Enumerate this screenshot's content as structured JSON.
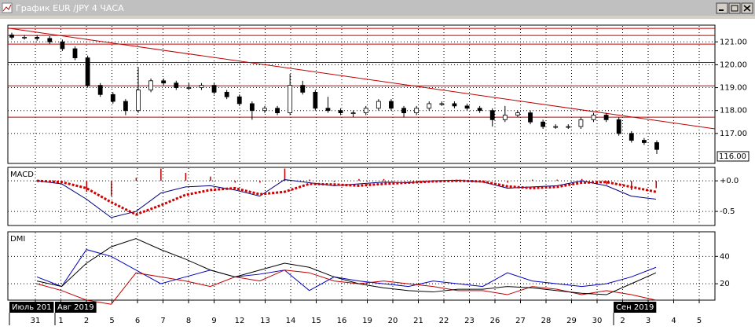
{
  "window": {
    "title": "График EUR /JPY  4 ЧАСА"
  },
  "chart_data": [
    {
      "type": "candlestick",
      "ylim": [
        115.69,
        121.73
      ],
      "yticks": [
        {
          "value": 121,
          "label": "121.00"
        },
        {
          "value": 120,
          "label": "120.00"
        },
        {
          "value": 119,
          "label": "119.00"
        },
        {
          "value": 118,
          "label": "118.00"
        },
        {
          "value": 117,
          "label": "117.00"
        }
      ],
      "last_price": {
        "value": 116,
        "label": "116.00"
      },
      "levels": [
        121.59,
        121.28,
        120.9,
        120.1,
        119.08,
        117.71
      ],
      "level_color": "#c00000",
      "trendline": [
        121.6,
        117.2
      ],
      "open": [
        121.3,
        121.2,
        121.2,
        121.15,
        121.0,
        120.7,
        120.3,
        119.1,
        118.7,
        118.4,
        118.0,
        118.9,
        119.3,
        119.2,
        119.0,
        119.0,
        119.1,
        118.8,
        118.6,
        118.3,
        118.0,
        118.1,
        117.9,
        119.1,
        118.8,
        118.1,
        118.0,
        117.9,
        117.9,
        118.1,
        118.4,
        118.1,
        117.9,
        118.1,
        118.3,
        118.3,
        118.2,
        118.1,
        118.0,
        117.6,
        117.8,
        117.9,
        117.5,
        117.3,
        117.3,
        117.3,
        117.6,
        117.8,
        117.6,
        117.0,
        116.7,
        116.6
      ],
      "high": [
        121.4,
        121.3,
        121.3,
        121.25,
        121.1,
        120.8,
        120.4,
        119.2,
        118.8,
        118.5,
        119.9,
        119.4,
        119.4,
        119.3,
        119.2,
        119.2,
        119.2,
        118.9,
        118.7,
        118.4,
        118.2,
        118.2,
        119.6,
        119.3,
        118.9,
        118.6,
        118.1,
        118.0,
        118.2,
        118.5,
        118.5,
        118.2,
        118.2,
        118.4,
        118.4,
        118.4,
        118.3,
        118.2,
        118.1,
        118.2,
        118.0,
        118.0,
        117.6,
        117.4,
        117.4,
        117.7,
        117.9,
        117.9,
        117.7,
        117.1,
        116.8,
        116.7
      ],
      "low": [
        121.1,
        121.1,
        121.05,
        120.9,
        120.6,
        120.2,
        119.0,
        118.6,
        118.3,
        117.8,
        117.9,
        118.8,
        119.1,
        118.9,
        118.9,
        118.9,
        118.7,
        118.5,
        118.2,
        117.6,
        117.9,
        117.8,
        117.8,
        118.7,
        118.0,
        117.9,
        117.8,
        117.7,
        117.8,
        118.0,
        118.0,
        117.7,
        117.8,
        118.0,
        118.2,
        118.1,
        118.0,
        117.9,
        117.3,
        117.5,
        117.7,
        117.4,
        117.2,
        117.2,
        117.2,
        117.2,
        117.5,
        117.5,
        116.9,
        116.6,
        116.5,
        116.1
      ],
      "close": [
        121.2,
        121.2,
        121.15,
        121.0,
        120.7,
        120.3,
        119.1,
        118.7,
        118.4,
        118.0,
        118.9,
        119.3,
        119.2,
        119.0,
        119.0,
        119.1,
        118.8,
        118.6,
        118.3,
        118.0,
        118.1,
        117.9,
        119.1,
        118.8,
        118.1,
        118.0,
        117.9,
        117.9,
        118.1,
        118.4,
        118.1,
        117.9,
        118.1,
        118.3,
        118.3,
        118.2,
        118.1,
        118.0,
        117.6,
        117.8,
        117.9,
        117.5,
        117.3,
        117.3,
        117.3,
        117.6,
        117.8,
        117.6,
        117.0,
        116.7,
        116.6,
        116.3
      ]
    },
    {
      "type": "macd",
      "title": "MACD",
      "ylim": [
        -0.73,
        0.22
      ],
      "yticks": [
        {
          "value": 0,
          "label": "+0.0"
        },
        {
          "value": -0.5,
          "label": "-0.5"
        }
      ],
      "histogram": {
        "color": "#c00000",
        "values": [
          0,
          -0.03,
          -0.18,
          -0.25,
          0.05,
          0.2,
          0.13,
          0.07,
          -0.03,
          -0.03,
          0.2,
          0.02,
          -0.02,
          0.03,
          0.03,
          0,
          0.01,
          0.01,
          -0.01,
          -0.03,
          0.02,
          0.02,
          0.03,
          -0.06,
          -0.15,
          -0.12
        ]
      },
      "series": [
        {
          "color": "#000080",
          "values": [
            0,
            -0.05,
            -0.3,
            -0.6,
            -0.5,
            -0.2,
            -0.1,
            -0.08,
            -0.15,
            -0.25,
            0.02,
            -0.03,
            -0.08,
            -0.05,
            -0.02,
            -0.03,
            0,
            0.01,
            -0.02,
            -0.12,
            -0.1,
            -0.08,
            0,
            -0.08,
            -0.25,
            -0.3
          ]
        },
        {
          "color": "#d00000",
          "dotted": true,
          "values": [
            0,
            -0.02,
            -0.12,
            -0.35,
            -0.55,
            -0.4,
            -0.23,
            -0.15,
            -0.12,
            -0.22,
            -0.18,
            -0.05,
            -0.06,
            -0.08,
            -0.05,
            -0.03,
            -0.01,
            0,
            -0.01,
            -0.09,
            -0.12,
            -0.1,
            -0.03,
            -0.02,
            -0.1,
            -0.18
          ]
        }
      ]
    },
    {
      "type": "line",
      "title": "DMI",
      "ylim": [
        8,
        58
      ],
      "yticks": [
        40,
        20
      ],
      "series": [
        {
          "color": "#0000c0",
          "values": [
            25,
            18,
            45,
            40,
            30,
            20,
            25,
            30,
            25,
            27,
            30,
            15,
            25,
            22,
            20,
            18,
            22,
            20,
            18,
            28,
            22,
            20,
            18,
            20,
            25,
            32
          ]
        },
        {
          "color": "#c00000",
          "values": [
            20,
            15,
            8,
            5,
            28,
            25,
            22,
            18,
            25,
            22,
            30,
            28,
            22,
            20,
            22,
            20,
            18,
            15,
            15,
            12,
            18,
            16,
            12,
            15,
            12,
            8
          ]
        },
        {
          "color": "#000000",
          "values": [
            22,
            18,
            35,
            47,
            53,
            45,
            38,
            30,
            25,
            30,
            35,
            32,
            25,
            20,
            17,
            15,
            14,
            16,
            16,
            18,
            17,
            15,
            13,
            12,
            20,
            28
          ]
        }
      ]
    }
  ],
  "x_axis": {
    "months": [
      "Июль 201",
      "Авг 2019",
      "Сен 2019"
    ],
    "days": [
      "31",
      "1",
      "2",
      "5",
      "6",
      "7",
      "8",
      "9",
      "12",
      "13",
      "14",
      "15",
      "16",
      "19",
      "20",
      "21",
      "22",
      "23",
      "26",
      "27",
      "28",
      "29",
      "30",
      "2",
      "3",
      "4",
      "5"
    ]
  }
}
